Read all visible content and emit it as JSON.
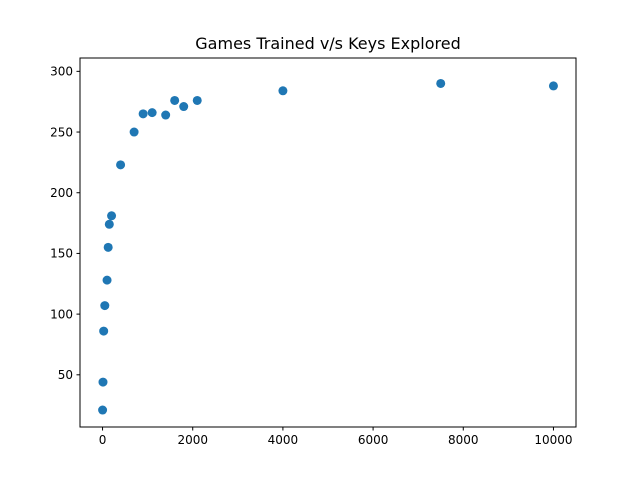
{
  "chart_data": {
    "type": "scatter",
    "title": "Games Trained v/s Keys Explored",
    "xlabel": "",
    "ylabel": "",
    "xlim": [
      -500,
      10500
    ],
    "ylim": [
      7,
      311
    ],
    "xticks": [
      0,
      2000,
      4000,
      6000,
      8000,
      10000
    ],
    "yticks": [
      50,
      100,
      150,
      200,
      250,
      300
    ],
    "grid": false,
    "legend": "none",
    "marker_color": "#1f77b4",
    "series": [
      {
        "x": [
          1,
          10,
          25,
          50,
          100,
          125,
          150,
          200,
          400,
          700,
          900,
          1100,
          1400,
          1600,
          1800,
          2100,
          4000,
          7500,
          10000
        ],
        "y": [
          21,
          44,
          86,
          107,
          128,
          155,
          174,
          181,
          223,
          250,
          265,
          266,
          264,
          276,
          271,
          276,
          284,
          290,
          288
        ]
      }
    ]
  }
}
